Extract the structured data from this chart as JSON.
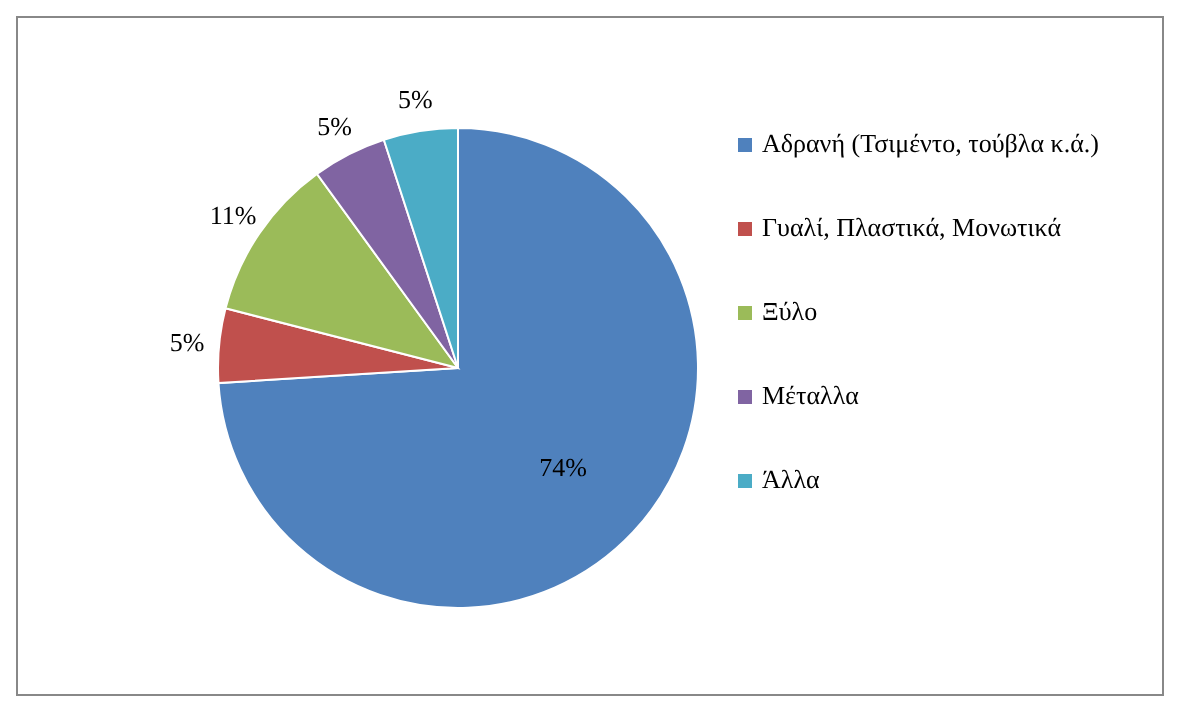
{
  "chart_data": {
    "type": "pie",
    "categories": [
      "Αδρανή (Τσιμέντο, τούβλα κ.ά.)",
      "Γυαλί, Πλαστικά, Μονωτικά",
      "Ξύλο",
      "Μέταλλα",
      "Άλλα"
    ],
    "values": [
      74,
      5,
      11,
      5,
      5
    ],
    "colors": [
      "#4f81bd",
      "#c0504d",
      "#9bbb59",
      "#8064a2",
      "#4bacc6"
    ],
    "value_labels": [
      "74%",
      "5%",
      "11%",
      "5%",
      "5%"
    ],
    "legend": "right"
  }
}
